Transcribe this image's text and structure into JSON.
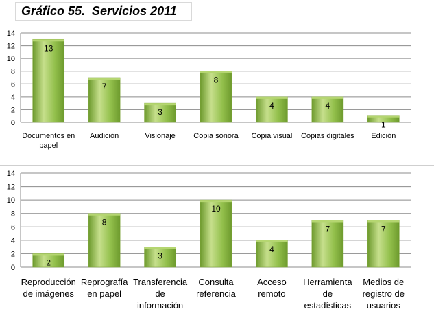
{
  "page": {
    "title": "Gráfico 55.  Servicios 2011"
  },
  "colors": {
    "bar_light": "#c6df8c",
    "bar_mid": "#93c04c",
    "bar_dark": "#6d9a2d",
    "bar_top": "#b5d671",
    "grid": "#8c8c8c",
    "text": "#000000"
  },
  "chart_data": [
    {
      "type": "bar",
      "title": "",
      "xlabel": "",
      "ylabel": "",
      "categories": [
        "Documentos en\npapel",
        "Audición",
        "Visionaje",
        "Copia sonora",
        "Copia visual",
        "Copias digitales",
        "Edición"
      ],
      "values": [
        13,
        7,
        3,
        8,
        4,
        4,
        1
      ],
      "ylim": [
        0,
        14
      ],
      "yticks": [
        0,
        2,
        4,
        6,
        8,
        10,
        12,
        14
      ],
      "grid": true,
      "data_labels": true
    },
    {
      "type": "bar",
      "title": "",
      "xlabel": "",
      "ylabel": "",
      "categories": [
        "Reproducción\nde imágenes",
        "Reprografía\nen papel",
        "Transferencia\nde\ninformación",
        "Consulta\nreferencia",
        "Acceso\nremoto",
        "Herramienta\nde\nestadísticas",
        "Medios de\nregistro de\nusuarios"
      ],
      "values": [
        2,
        8,
        3,
        10,
        4,
        7,
        7
      ],
      "ylim": [
        0,
        14
      ],
      "yticks": [
        0,
        2,
        4,
        6,
        8,
        10,
        12,
        14
      ],
      "grid": true,
      "data_labels": true
    }
  ]
}
